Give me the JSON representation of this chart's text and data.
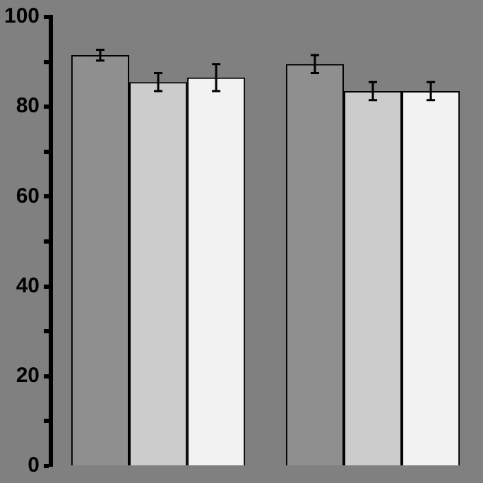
{
  "chart_data": {
    "type": "bar",
    "categories": [
      null,
      null
    ],
    "series": [
      {
        "color": "#8f8f8f",
        "values": [
          91.5,
          89.5
        ],
        "errors": [
          1.2,
          2
        ]
      },
      {
        "color": "#cccccc",
        "values": [
          85.5,
          83.5
        ],
        "errors": [
          2,
          2
        ]
      },
      {
        "color": "#f2f2f2",
        "values": [
          86.5,
          83.5
        ],
        "errors": [
          3,
          2
        ]
      }
    ],
    "ylim": [
      0,
      100
    ],
    "yticks": [
      0,
      {
        "value": 10,
        "label": null
      },
      20,
      {
        "value": 30,
        "label": null
      },
      40,
      {
        "value": 50,
        "label": null
      },
      60,
      {
        "value": 70,
        "label": null
      },
      80,
      {
        "value": 90,
        "label": null
      },
      100
    ],
    "grid": false,
    "legend": false
  }
}
